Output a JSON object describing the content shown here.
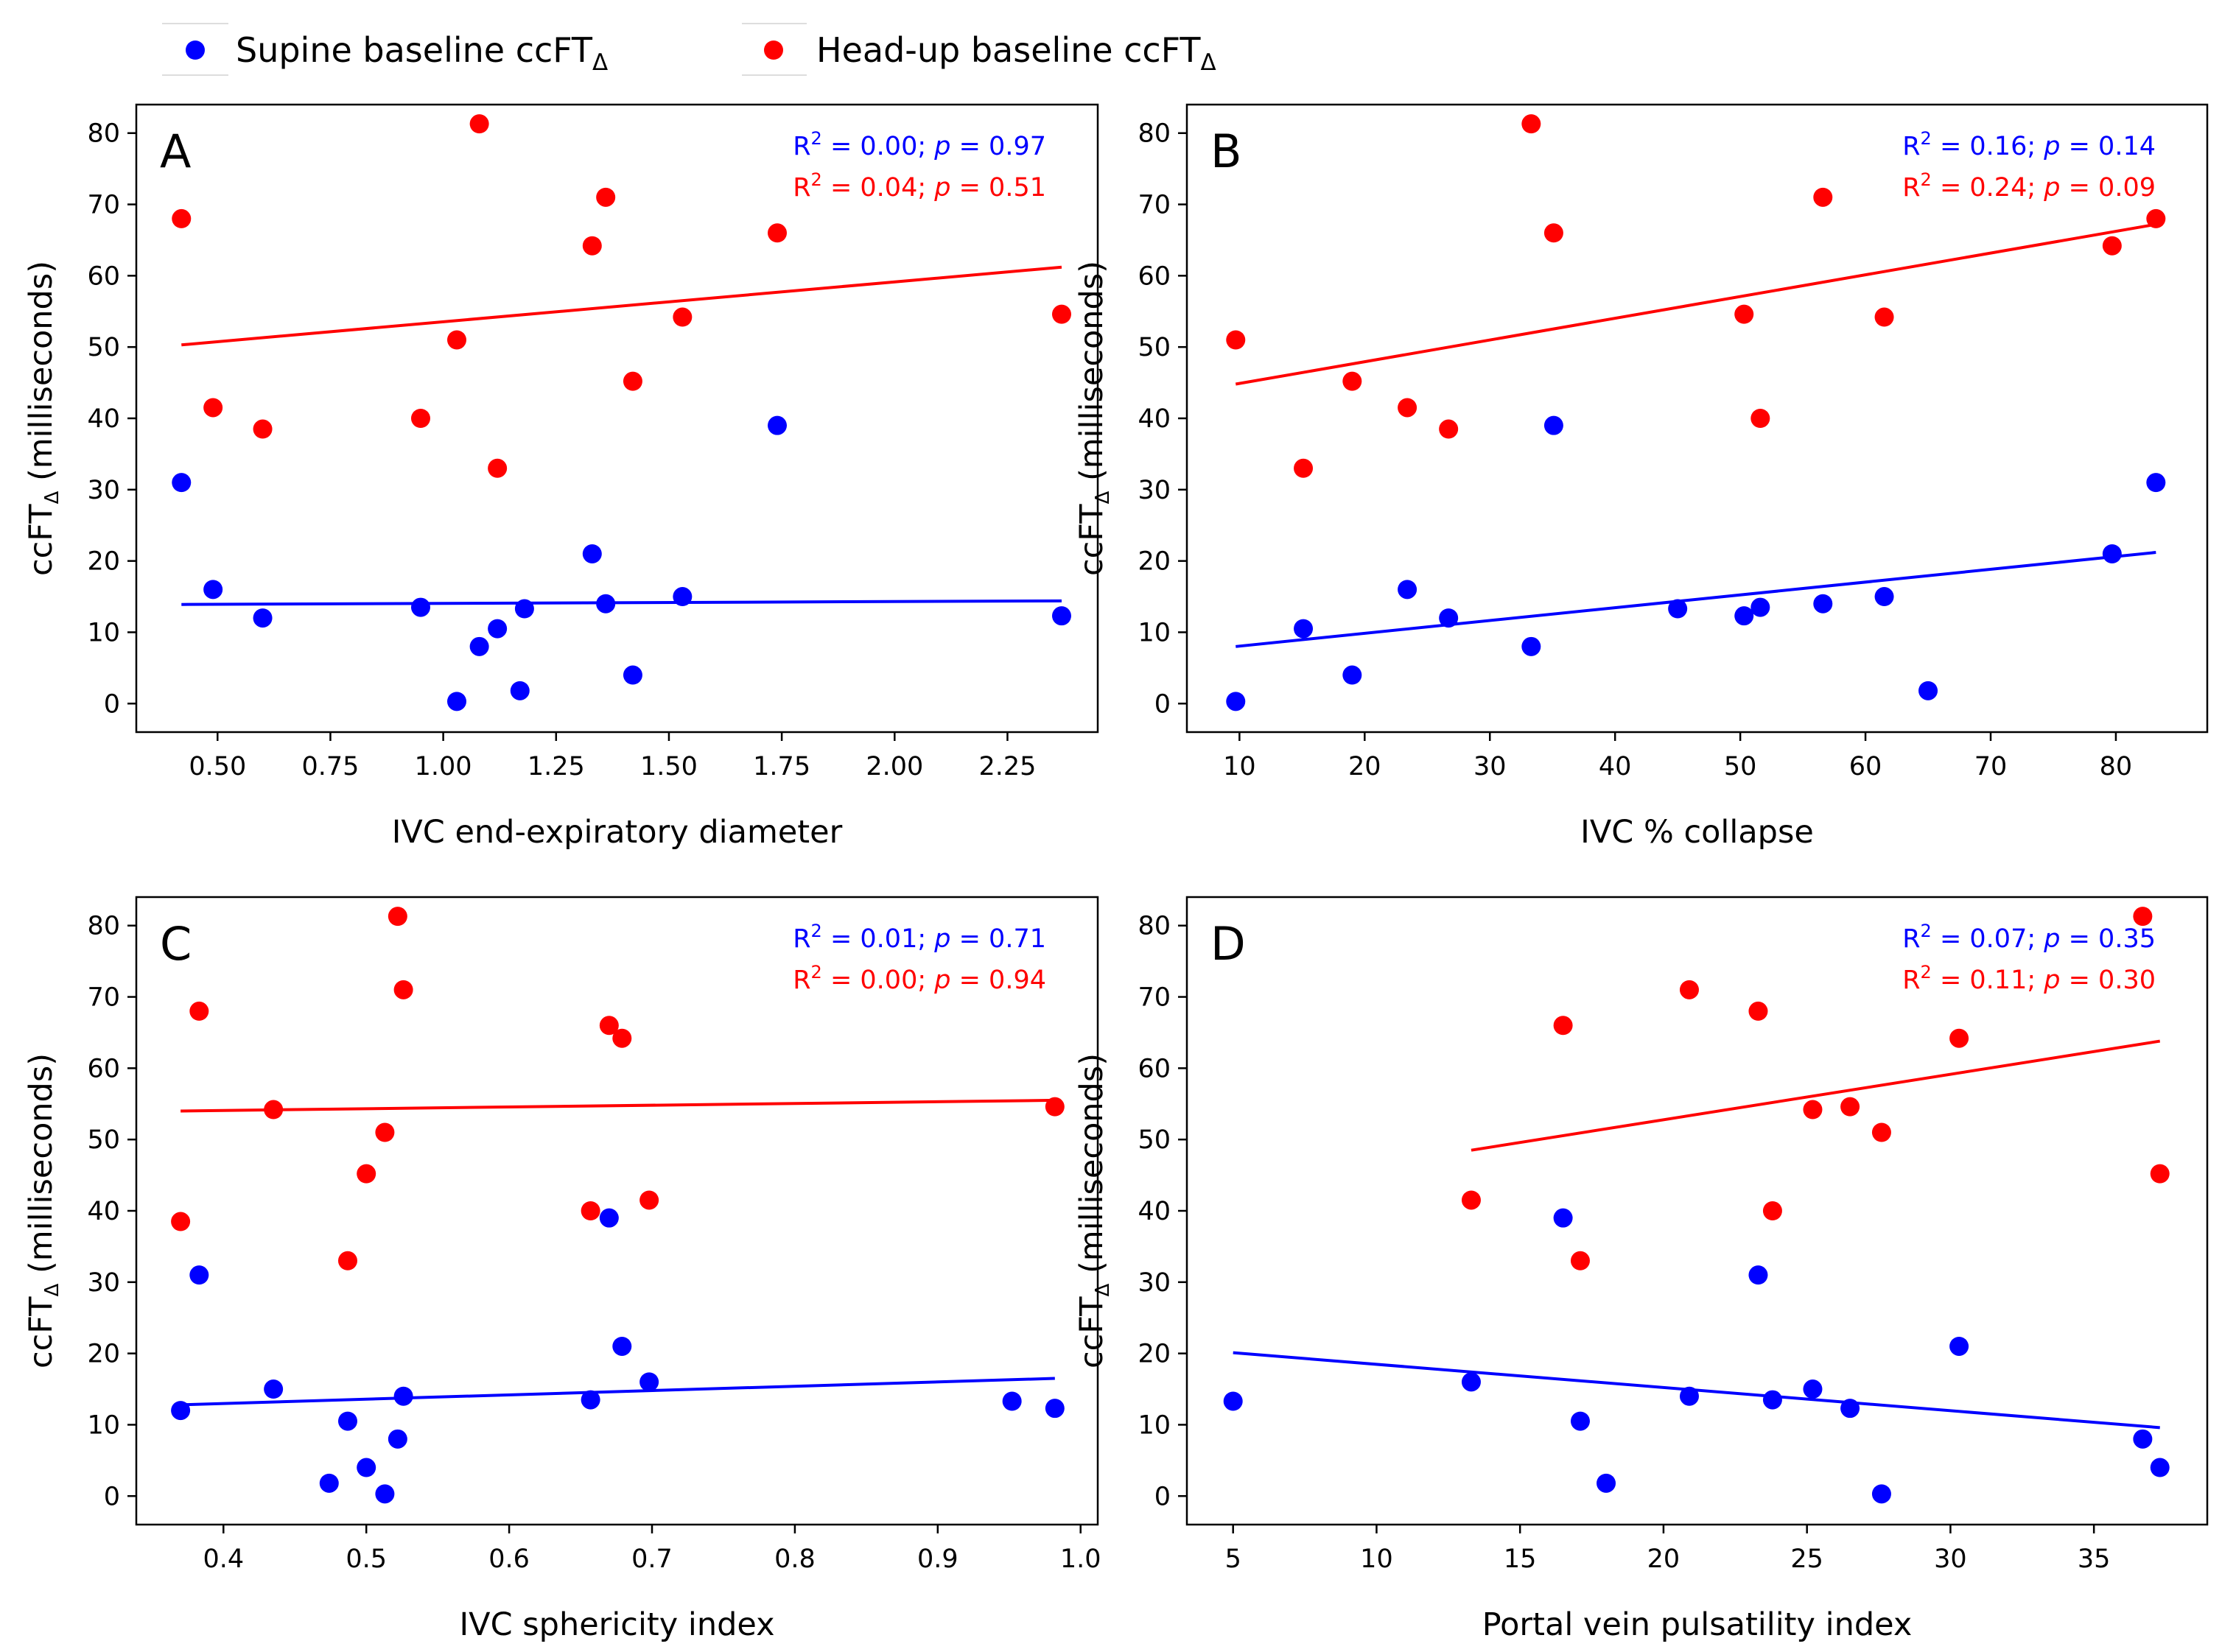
{
  "legend": {
    "items": [
      {
        "main": "Supine baseline ccFT",
        "sub": "Δ",
        "color": "#0000ff"
      },
      {
        "main": "Head-up baseline ccFT",
        "sub": "Δ",
        "color": "#ff0000"
      }
    ]
  },
  "chart_data": [
    {
      "type": "scatter",
      "panel": "A",
      "xlabel": "IVC end-expiratory diameter",
      "ylabel": {
        "main": "ccFT",
        "sub": "Δ",
        "rest": " (milliseconds)"
      },
      "xlim": [
        0.32,
        2.45
      ],
      "ylim": [
        -4,
        84
      ],
      "xticks": [
        0.5,
        0.75,
        1.0,
        1.25,
        1.5,
        1.75,
        2.0,
        2.25
      ],
      "xtick_labels": [
        "0.50",
        "0.75",
        "1.00",
        "1.25",
        "1.50",
        "1.75",
        "2.00",
        "2.25"
      ],
      "yticks": [
        0,
        10,
        20,
        30,
        40,
        50,
        60,
        70,
        80
      ],
      "stats": [
        {
          "series": "supine",
          "r2": "0.00",
          "p": "0.97"
        },
        {
          "series": "headup",
          "r2": "0.04",
          "p": "0.51"
        }
      ],
      "series": [
        {
          "name": "supine",
          "color": "#0000ff",
          "x": [
            0.42,
            0.49,
            0.6,
            0.95,
            1.03,
            1.08,
            1.12,
            1.17,
            1.18,
            1.33,
            1.36,
            1.42,
            1.53,
            1.74,
            2.37
          ],
          "y": [
            31,
            16,
            12,
            13.5,
            0.3,
            8,
            10.5,
            1.8,
            13.3,
            21,
            14,
            4,
            15,
            39,
            12.3
          ],
          "fit": [
            [
              0.42,
              13.9
            ],
            [
              2.37,
              14.4
            ]
          ]
        },
        {
          "name": "headup",
          "color": "#ff0000",
          "x": [
            0.42,
            0.49,
            0.6,
            0.95,
            1.03,
            1.08,
            1.12,
            1.33,
            1.36,
            1.42,
            1.53,
            1.74,
            2.37
          ],
          "y": [
            68,
            41.5,
            38.5,
            40,
            51,
            81.3,
            33,
            64.2,
            71,
            45.2,
            54.2,
            66,
            54.6
          ],
          "fit": [
            [
              0.42,
              50.3
            ],
            [
              2.37,
              61.2
            ]
          ]
        }
      ]
    },
    {
      "type": "scatter",
      "panel": "B",
      "xlabel": "IVC % collapse",
      "ylabel": {
        "main": "ccFT",
        "sub": "Δ",
        "rest": " (milliseconds)"
      },
      "xlim": [
        5.8,
        87.3
      ],
      "ylim": [
        -4,
        84
      ],
      "xticks": [
        10,
        20,
        30,
        40,
        50,
        60,
        70,
        80
      ],
      "xtick_labels": [
        "10",
        "20",
        "30",
        "40",
        "50",
        "60",
        "70",
        "80"
      ],
      "yticks": [
        0,
        10,
        20,
        30,
        40,
        50,
        60,
        70,
        80
      ],
      "stats": [
        {
          "series": "supine",
          "r2": "0.16",
          "p": "0.14"
        },
        {
          "series": "headup",
          "r2": "0.24",
          "p": "0.09"
        }
      ],
      "series": [
        {
          "name": "supine",
          "color": "#0000ff",
          "x": [
            9.7,
            15.1,
            19.0,
            23.4,
            26.7,
            33.3,
            35.1,
            45.0,
            50.3,
            51.6,
            56.6,
            61.5,
            65.0,
            79.7,
            83.2
          ],
          "y": [
            0.3,
            10.5,
            4,
            16,
            12,
            8,
            39,
            13.3,
            12.3,
            13.5,
            14,
            15,
            1.8,
            21,
            31
          ],
          "fit": [
            [
              9.7,
              8.0
            ],
            [
              83.2,
              21.2
            ]
          ]
        },
        {
          "name": "headup",
          "color": "#ff0000",
          "x": [
            9.7,
            15.1,
            19.0,
            23.4,
            26.7,
            33.3,
            35.1,
            50.3,
            51.6,
            56.6,
            61.5,
            79.7,
            83.2
          ],
          "y": [
            51,
            33,
            45.2,
            41.5,
            38.5,
            81.3,
            66,
            54.6,
            40,
            71,
            54.2,
            64.2,
            68
          ],
          "fit": [
            [
              9.7,
              44.8
            ],
            [
              83.2,
              67.2
            ]
          ]
        }
      ]
    },
    {
      "type": "scatter",
      "panel": "C",
      "xlabel": "IVC sphericity index",
      "ylabel": {
        "main": "ccFT",
        "sub": "Δ",
        "rest": " (milliseconds)"
      },
      "xlim": [
        0.339,
        1.012
      ],
      "ylim": [
        -4,
        84
      ],
      "xticks": [
        0.4,
        0.5,
        0.6,
        0.7,
        0.8,
        0.9,
        1.0
      ],
      "xtick_labels": [
        "0.4",
        "0.5",
        "0.6",
        "0.7",
        "0.8",
        "0.9",
        "1.0"
      ],
      "yticks": [
        0,
        10,
        20,
        30,
        40,
        50,
        60,
        70,
        80
      ],
      "stats": [
        {
          "series": "supine",
          "r2": "0.01",
          "p": "0.71"
        },
        {
          "series": "headup",
          "r2": "0.00",
          "p": "0.94"
        }
      ],
      "series": [
        {
          "name": "supine",
          "color": "#0000ff",
          "x": [
            0.37,
            0.383,
            0.435,
            0.474,
            0.487,
            0.5,
            0.513,
            0.522,
            0.526,
            0.657,
            0.67,
            0.679,
            0.698,
            0.952,
            0.982
          ],
          "y": [
            12,
            31,
            15,
            1.8,
            10.5,
            4,
            0.3,
            8,
            14,
            13.5,
            39,
            21,
            16,
            13.3,
            12.3
          ],
          "fit": [
            [
              0.37,
              12.8
            ],
            [
              0.982,
              16.5
            ]
          ]
        },
        {
          "name": "headup",
          "color": "#ff0000",
          "x": [
            0.37,
            0.383,
            0.435,
            0.487,
            0.5,
            0.513,
            0.522,
            0.526,
            0.657,
            0.67,
            0.679,
            0.698,
            0.982
          ],
          "y": [
            38.5,
            68,
            54.2,
            33,
            45.2,
            51,
            81.3,
            71,
            40,
            66,
            64.2,
            41.5,
            54.6
          ],
          "fit": [
            [
              0.37,
              54.0
            ],
            [
              0.982,
              55.5
            ]
          ]
        }
      ]
    },
    {
      "type": "scatter",
      "panel": "D",
      "xlabel": "Portal vein pulsatility index",
      "ylabel": {
        "main": "ccFT",
        "sub": "Δ",
        "rest": " (milliseconds)"
      },
      "xlim": [
        3.39,
        38.95
      ],
      "ylim": [
        -4,
        84
      ],
      "xticks": [
        5,
        10,
        15,
        20,
        25,
        30,
        35
      ],
      "xtick_labels": [
        "5",
        "10",
        "15",
        "20",
        "25",
        "30",
        "35"
      ],
      "yticks": [
        0,
        10,
        20,
        30,
        40,
        50,
        60,
        70,
        80
      ],
      "stats": [
        {
          "series": "supine",
          "r2": "0.07",
          "p": "0.35"
        },
        {
          "series": "headup",
          "r2": "0.11",
          "p": "0.30"
        }
      ],
      "series": [
        {
          "name": "supine",
          "color": "#0000ff",
          "x": [
            5.0,
            13.3,
            16.5,
            17.1,
            18.0,
            20.9,
            23.3,
            23.8,
            25.2,
            26.5,
            27.6,
            30.3,
            36.7,
            37.3
          ],
          "y": [
            13.3,
            16,
            39,
            10.5,
            1.8,
            14,
            31,
            13.5,
            15,
            12.3,
            0.3,
            21,
            8,
            4
          ],
          "fit": [
            [
              5.0,
              20.1
            ],
            [
              37.3,
              9.6
            ]
          ]
        },
        {
          "name": "headup",
          "color": "#ff0000",
          "x": [
            13.3,
            16.5,
            17.1,
            20.9,
            23.3,
            23.8,
            25.2,
            26.5,
            27.6,
            30.3,
            36.7,
            37.3
          ],
          "y": [
            41.5,
            66,
            33,
            71,
            68,
            40,
            54.2,
            54.6,
            51,
            64.2,
            81.3,
            45.2
          ],
          "fit": [
            [
              13.3,
              48.5
            ],
            [
              37.3,
              63.8
            ]
          ]
        }
      ]
    }
  ]
}
